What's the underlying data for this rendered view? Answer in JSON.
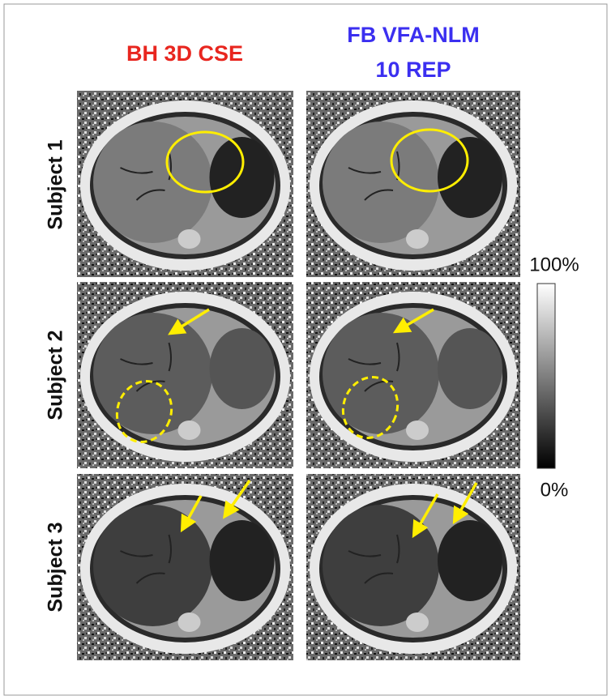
{
  "columns": [
    {
      "title": [
        "BH 3D CSE"
      ]
    },
    {
      "title": [
        "FB VFA-NLM",
        "10 REP"
      ]
    }
  ],
  "rows": [
    {
      "label": "Subject 1"
    },
    {
      "label": "Subject 2"
    },
    {
      "label": "Subject 3"
    }
  ],
  "colorbar": {
    "max_label": "100%",
    "min_label": "0%"
  }
}
